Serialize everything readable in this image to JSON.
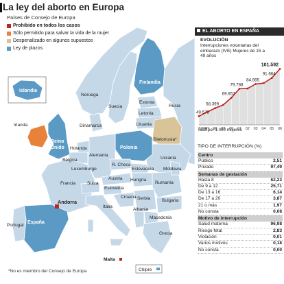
{
  "header": {
    "title": "La ley del aborto en Europa",
    "subtitle": "Países de Consejo de Europa"
  },
  "legend": [
    {
      "label": "Prohibido en todos los casos",
      "color": "#c0241e"
    },
    {
      "label": "Sólo permitido para salvar la vida de la mujer",
      "color": "#e8823a"
    },
    {
      "label": "Despenalizado en algunos supuestos",
      "color": "#d9c49a"
    },
    {
      "label": "Ley de plazos",
      "color": "#5b9ac4"
    }
  ],
  "map": {
    "base_color": "#c5d8e8",
    "countries": {
      "islandia": "Islandia",
      "noruega": "Noruega",
      "suecia": "Suecia",
      "finlandia": "Finlandia",
      "estonia": "Estonia",
      "rusia": "Rusia",
      "letonia": "Letonia",
      "lituania": "Lituania",
      "dinamarca": "Dinamarca",
      "irlanda": "Irlanda",
      "reino_unido": "Reino Unido",
      "holanda": "Holanda",
      "alemania": "Alemania",
      "polonia": "Polonia",
      "bielorrusia": "Bielorrusia*",
      "belgica": "Bélgica",
      "luxemburgo": "Luxemburgo",
      "r_checa": "R. Checa",
      "eslovaquia": "Eslovaquia",
      "ucrania": "Ucrania",
      "moldavia": "Moldavia",
      "francia": "Francia",
      "suiza": "Suiza",
      "austria": "Austria",
      "hungria": "Hungría",
      "rumania": "Rumanía",
      "eslovenia": "Eslovenia",
      "croacia": "Croacia",
      "serbia": "Serbia",
      "bulgaria": "Bulgaria",
      "italia": "Italia",
      "portugal": "Portugal",
      "andorra": "Andorra",
      "espana": "España",
      "albania": "Albania",
      "macedonia": "Macedonia",
      "grecia": "Grecia",
      "malta": "Malta",
      "chipre": "Chipre"
    }
  },
  "footnote": "*No es miembro del Consejo de Europa",
  "sidebar": {
    "header": "EL ABORTO EN ESPAÑA",
    "evolution_title": "EVOLUCIÓN",
    "evolution_subtitle": "Interrupciones voluntarias del embarazo (IVE) Mujeres de 15 a 49 años",
    "rate_note": "Tasa por 1.000 mujeres",
    "type_title": "TIPO DE INTERRUPCIÓN (%)",
    "tables": [
      {
        "section": "Centro",
        "rows": [
          {
            "label": "Público",
            "value": "2,51"
          },
          {
            "label": "Privado",
            "value": "97,49"
          }
        ]
      },
      {
        "section": "Semanas de gestación",
        "rows": [
          {
            "label": "Hasta 8",
            "value": "62,23"
          },
          {
            "label": "De 9 a 12",
            "value": "25,71"
          },
          {
            "label": "De 13 a 16",
            "value": "6,14"
          },
          {
            "label": "De 17 a 20",
            "value": "3,87"
          },
          {
            "label": "21 o más",
            "value": "1,97"
          },
          {
            "label": "No consta",
            "value": "0,08"
          }
        ]
      },
      {
        "section": "Motivo de interrupción",
        "rows": [
          {
            "label": "Salud materna",
            "value": "96,98"
          },
          {
            "label": "Riesgo fetal",
            "value": "2,83"
          },
          {
            "label": "Violación",
            "value": "0,01"
          },
          {
            "label": "Varios motivos",
            "value": "0,18"
          },
          {
            "label": "No consta",
            "value": "0,00"
          }
        ]
      }
    ]
  },
  "chart_data": {
    "type": "area",
    "categories": [
      "1994",
      "97",
      "98",
      "99",
      "00",
      "01",
      "02",
      "03",
      "04",
      "05",
      "06"
    ],
    "series": [
      {
        "values": [
          49578,
          54000,
          58399,
          62000,
          69857,
          79788,
          80000,
          84985,
          86000,
          91664,
          101592
        ]
      }
    ],
    "labeled_points": {
      "1994": "49.578",
      "98": "58.399",
      "00": "69.857",
      "01": "79.788",
      "03": "84.985",
      "05": "91.664",
      "06": "101.592"
    },
    "ylim": [
      40000,
      105000
    ],
    "color": "#e0e0e0",
    "line_color": "#c0241e",
    "grid": true
  }
}
